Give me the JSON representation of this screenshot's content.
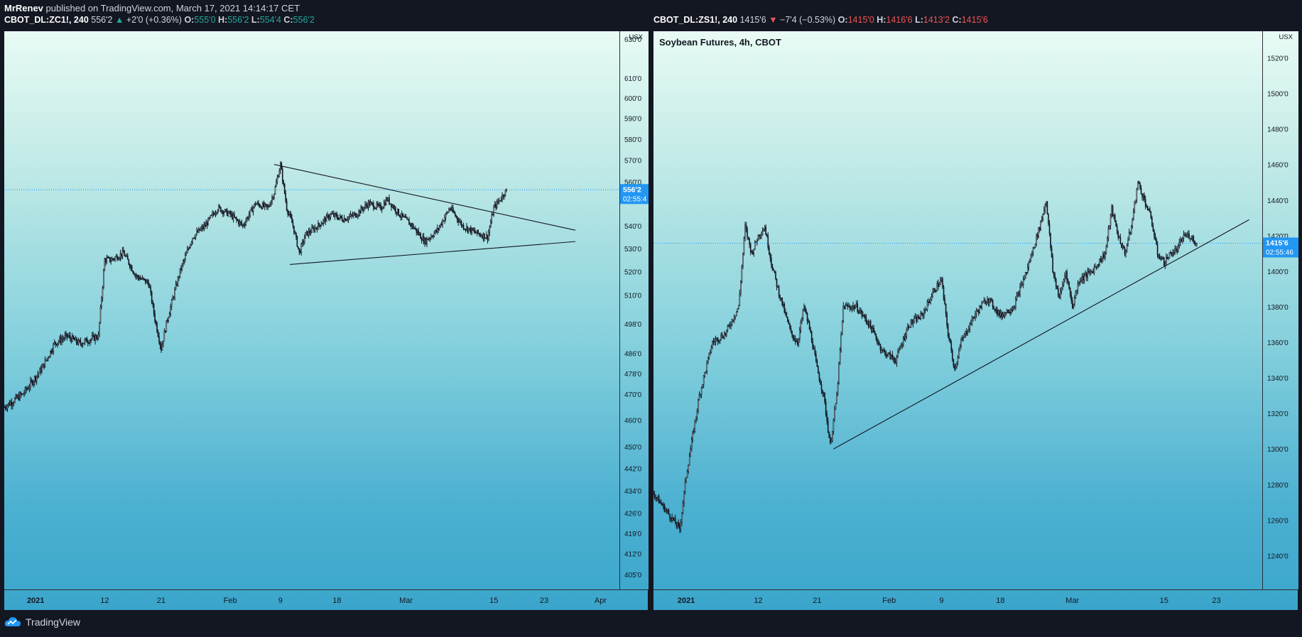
{
  "header": {
    "author": "MrRenev",
    "published_text": " published on TradingView.com, March 17, 2021 14:14:17 CET"
  },
  "footer": {
    "brand": "TradingView",
    "logo_icon": "tradingview-cloud-icon"
  },
  "colors": {
    "up": "#26a69a",
    "down": "#ef5350",
    "price_label": "#2196f3",
    "candle": "#131722"
  },
  "left_legend": {
    "symbol": "CBOT_DL:ZC1!, 240",
    "last": "556'2",
    "arrow": "▲",
    "change": "+2'0 (+0.36%)",
    "o_label": "O:",
    "o": "555'0",
    "h_label": "H:",
    "h": "556'2",
    "l_label": "L:",
    "l": "554'4",
    "c_label": "C:",
    "c": "556'2"
  },
  "right_legend": {
    "symbol": "CBOT_DL:ZS1!, 240",
    "last": "1415'6",
    "arrow": "▼",
    "change": "−7'4 (−0.53%)",
    "o_label": "O:",
    "o": "1415'0",
    "h_label": "H:",
    "h": "1416'6",
    "l_label": "L:",
    "l": "1413'2",
    "c_label": "C:",
    "c": "1415'6"
  },
  "chart_data": [
    {
      "type": "candlestick",
      "symbol": "CBOT_DL:ZC1!",
      "interval": "240",
      "y_unit": "USX",
      "y_ticks": [
        "630'0",
        "610'0",
        "600'0",
        "590'0",
        "580'0",
        "570'0",
        "560'0",
        "540'0",
        "530'0",
        "520'0",
        "510'0",
        "498'0",
        "486'0",
        "478'0",
        "470'0",
        "460'0",
        "450'0",
        "442'0",
        "434'0",
        "426'0",
        "419'0",
        "412'0",
        "405'0"
      ],
      "y_tick_values": [
        630,
        610,
        600,
        590,
        580,
        570,
        560,
        540,
        530,
        520,
        510,
        498,
        486,
        478,
        470,
        460,
        450,
        442,
        434,
        426,
        419,
        412,
        405
      ],
      "ylim": [
        400,
        634
      ],
      "log_scale": true,
      "x_ticks": [
        "2021",
        "12",
        "21",
        "Feb",
        "9",
        "18",
        "Mar",
        "15",
        "23",
        "Apr"
      ],
      "x_tick_days": [
        0,
        11,
        20,
        31,
        39,
        48,
        59,
        73,
        81,
        90
      ],
      "xlim": [
        -5,
        93
      ],
      "last_price": 556.25,
      "last_price_label": "556'2",
      "countdown": "02:55:4",
      "anchors": [
        [
          -5,
          465
        ],
        [
          -2,
          470
        ],
        [
          1,
          480
        ],
        [
          3,
          490
        ],
        [
          5,
          493
        ],
        [
          7,
          490
        ],
        [
          9,
          492
        ],
        [
          10,
          493
        ],
        [
          11,
          525
        ],
        [
          12,
          525
        ],
        [
          14,
          528
        ],
        [
          16,
          518
        ],
        [
          18,
          515
        ],
        [
          19,
          500
        ],
        [
          20,
          488
        ],
        [
          21,
          500
        ],
        [
          23,
          520
        ],
        [
          25,
          535
        ],
        [
          27,
          540
        ],
        [
          29,
          548
        ],
        [
          31,
          545
        ],
        [
          33,
          540
        ],
        [
          35,
          550
        ],
        [
          37,
          548
        ],
        [
          38,
          555
        ],
        [
          39,
          568
        ],
        [
          40,
          548
        ],
        [
          41,
          540
        ],
        [
          42,
          528
        ],
        [
          43,
          536
        ],
        [
          45,
          540
        ],
        [
          47,
          545
        ],
        [
          49,
          543
        ],
        [
          51,
          545
        ],
        [
          53,
          550
        ],
        [
          55,
          548
        ],
        [
          56,
          552
        ],
        [
          58,
          545
        ],
        [
          60,
          540
        ],
        [
          62,
          533
        ],
        [
          64,
          538
        ],
        [
          66,
          548
        ],
        [
          68,
          540
        ],
        [
          70,
          537
        ],
        [
          72,
          535
        ],
        [
          73,
          548
        ],
        [
          74,
          552
        ],
        [
          75,
          556.25
        ]
      ],
      "trendlines": [
        {
          "x1": 38,
          "y1": 568,
          "x2": 86,
          "y2": 538
        },
        {
          "x1": 40.5,
          "y1": 523,
          "x2": 86,
          "y2": 533
        }
      ]
    },
    {
      "type": "candlestick",
      "symbol": "CBOT_DL:ZS1!",
      "interval": "240",
      "title": "Soybean Futures, 4h, CBOT",
      "y_unit": "USX",
      "y_ticks": [
        "1520'0",
        "1500'0",
        "1480'0",
        "1460'0",
        "1440'0",
        "1420'0",
        "1400'0",
        "1380'0",
        "1360'0",
        "1340'0",
        "1320'0",
        "1300'0",
        "1280'0",
        "1260'0",
        "1240'0"
      ],
      "y_tick_values": [
        1520,
        1500,
        1480,
        1460,
        1440,
        1420,
        1400,
        1380,
        1360,
        1340,
        1320,
        1300,
        1280,
        1260,
        1240
      ],
      "ylim": [
        1221,
        1535
      ],
      "x_ticks": [
        "2021",
        "12",
        "21",
        "Feb",
        "9",
        "18",
        "Mar",
        "15",
        "23"
      ],
      "x_tick_days": [
        0,
        11,
        20,
        31,
        39,
        48,
        59,
        73,
        81
      ],
      "xlim": [
        -5,
        88
      ],
      "last_price": 1415.75,
      "last_price_label": "1415'6",
      "countdown": "02:55:46",
      "anchors": [
        [
          -5,
          1275
        ],
        [
          -3,
          1265
        ],
        [
          -1,
          1255
        ],
        [
          0,
          1285
        ],
        [
          2,
          1330
        ],
        [
          4,
          1360
        ],
        [
          6,
          1365
        ],
        [
          8,
          1380
        ],
        [
          9,
          1425
        ],
        [
          10,
          1410
        ],
        [
          11,
          1420
        ],
        [
          12,
          1425
        ],
        [
          13,
          1405
        ],
        [
          14,
          1390
        ],
        [
          16,
          1365
        ],
        [
          17,
          1360
        ],
        [
          18,
          1380
        ],
        [
          19,
          1365
        ],
        [
          20,
          1345
        ],
        [
          21,
          1330
        ],
        [
          22,
          1302
        ],
        [
          23,
          1330
        ],
        [
          24,
          1380
        ],
        [
          26,
          1380
        ],
        [
          28,
          1370
        ],
        [
          30,
          1355
        ],
        [
          32,
          1350
        ],
        [
          34,
          1370
        ],
        [
          36,
          1375
        ],
        [
          38,
          1390
        ],
        [
          39,
          1395
        ],
        [
          40,
          1365
        ],
        [
          41,
          1345
        ],
        [
          42,
          1360
        ],
        [
          44,
          1375
        ],
        [
          46,
          1385
        ],
        [
          48,
          1375
        ],
        [
          50,
          1380
        ],
        [
          52,
          1400
        ],
        [
          54,
          1425
        ],
        [
          55,
          1440
        ],
        [
          56,
          1400
        ],
        [
          57,
          1385
        ],
        [
          58,
          1400
        ],
        [
          59,
          1380
        ],
        [
          60,
          1395
        ],
        [
          62,
          1400
        ],
        [
          64,
          1410
        ],
        [
          65,
          1435
        ],
        [
          66,
          1420
        ],
        [
          67,
          1410
        ],
        [
          68,
          1425
        ],
        [
          69,
          1450
        ],
        [
          70,
          1440
        ],
        [
          71,
          1430
        ],
        [
          72,
          1410
        ],
        [
          73,
          1405
        ],
        [
          74,
          1410
        ],
        [
          75,
          1412
        ],
        [
          76,
          1420
        ],
        [
          77,
          1420
        ],
        [
          78,
          1415.75
        ]
      ],
      "trendlines": [
        {
          "x1": 22.5,
          "y1": 1300,
          "x2": 86,
          "y2": 1429
        }
      ]
    }
  ]
}
